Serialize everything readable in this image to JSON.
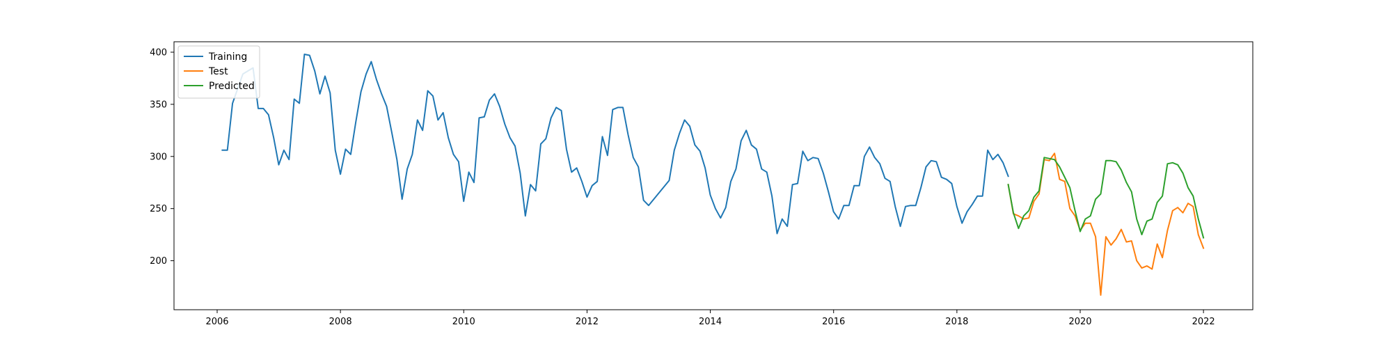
{
  "chart_data": {
    "type": "line",
    "title": "",
    "xlabel": "",
    "ylabel": "",
    "xlim": [
      2005.3,
      2022.8
    ],
    "ylim": [
      153,
      410
    ],
    "x_ticks": [
      2006,
      2008,
      2010,
      2012,
      2014,
      2016,
      2018,
      2020,
      2022
    ],
    "y_ticks": [
      200,
      250,
      300,
      350,
      400
    ],
    "grid": false,
    "legend_position": "top-left",
    "series": [
      {
        "name": "Training",
        "color": "#1f77b4",
        "start_year": 2006.083,
        "step": 0.08333,
        "values": [
          306,
          306,
          351,
          365,
          379,
          382,
          385,
          346,
          346,
          340,
          318,
          292,
          306,
          297,
          355,
          351,
          398,
          397,
          382,
          360,
          377,
          361,
          306,
          283,
          307,
          302,
          333,
          362,
          379,
          391,
          374,
          360,
          348,
          323,
          297,
          259,
          288,
          302,
          335,
          325,
          363,
          358,
          335,
          342,
          318,
          302,
          295,
          257,
          285,
          275,
          337,
          338,
          354,
          360,
          348,
          331,
          318,
          310,
          284,
          243,
          273,
          267,
          312,
          317,
          337,
          347,
          344,
          307,
          285,
          289,
          276,
          261,
          272,
          276,
          319,
          301,
          345,
          347,
          347,
          321,
          299,
          290,
          258,
          253,
          259,
          265,
          271,
          277,
          306,
          322,
          335,
          329,
          311,
          305,
          289,
          263,
          250,
          241,
          251,
          276,
          288,
          315,
          325,
          311,
          307,
          288,
          285,
          262,
          226,
          240,
          233,
          273,
          274,
          305,
          296,
          299,
          298,
          284,
          266,
          247,
          240,
          253,
          253,
          272,
          272,
          300,
          309,
          299,
          293,
          279,
          276,
          252,
          233,
          252,
          253,
          253,
          270,
          290,
          296,
          295,
          280,
          278,
          274,
          252,
          236,
          247,
          254,
          262,
          262,
          306,
          297,
          302,
          294,
          281
        ]
      },
      {
        "name": "Test",
        "color": "#ff7f0e",
        "start_year": 2018.833,
        "step": 0.08333,
        "values": [
          273,
          245,
          243,
          240,
          241,
          257,
          264,
          297,
          296,
          303,
          278,
          276,
          250,
          243,
          229,
          236,
          236,
          223,
          167,
          223,
          215,
          221,
          230,
          218,
          219,
          200,
          193,
          195,
          192,
          216,
          203,
          229,
          248,
          251,
          246,
          255,
          252,
          225,
          212
        ]
      },
      {
        "name": "Predicted",
        "color": "#2ca02c",
        "start_year": 2018.833,
        "step": 0.08333,
        "values": [
          273,
          246,
          231,
          243,
          248,
          261,
          267,
          299,
          298,
          297,
          290,
          280,
          270,
          248,
          228,
          240,
          243,
          259,
          264,
          296,
          296,
          295,
          287,
          275,
          266,
          240,
          225,
          238,
          240,
          256,
          262,
          293,
          294,
          292,
          284,
          270,
          262,
          240,
          222
        ]
      }
    ]
  }
}
